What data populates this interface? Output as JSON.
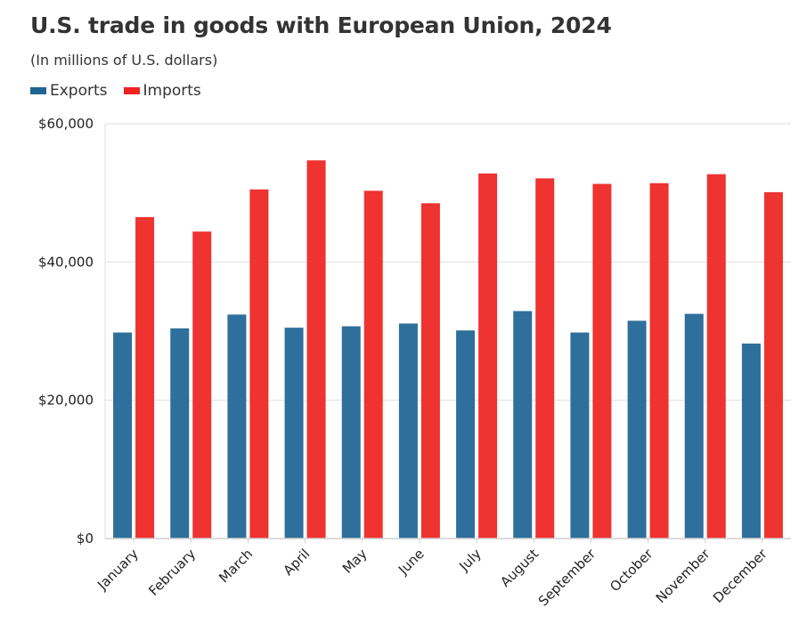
{
  "title": "U.S. trade in goods with European Union, 2024",
  "subtitle": "(In millions of U.S. dollars)",
  "legend": {
    "exports_label": "Exports",
    "imports_label": "Imports"
  },
  "colors": {
    "exports": "#2e6f9b",
    "imports": "#ee3330",
    "legend_exports": "#1f6593",
    "legend_imports": "#ee2322",
    "grid": "#e8e8e8"
  },
  "chart_data": {
    "type": "bar",
    "title": "U.S. trade in goods with European Union, 2024",
    "subtitle": "(In millions of U.S. dollars)",
    "categories": [
      "January",
      "February",
      "March",
      "April",
      "May",
      "June",
      "July",
      "August",
      "September",
      "October",
      "November",
      "December"
    ],
    "series": [
      {
        "name": "Exports",
        "values": [
          29800,
          30400,
          32400,
          30500,
          30700,
          31100,
          30100,
          32900,
          29800,
          31500,
          32500,
          28200
        ]
      },
      {
        "name": "Imports",
        "values": [
          46500,
          44400,
          50500,
          54700,
          50300,
          48500,
          52800,
          52100,
          51300,
          51400,
          52700,
          50100
        ]
      }
    ],
    "ylim": [
      0,
      60000
    ],
    "yticks": [
      0,
      20000,
      40000,
      60000
    ],
    "ytick_labels": [
      "$0",
      "$20,000",
      "$40,000",
      "$60,000"
    ],
    "xlabel": "",
    "ylabel": "",
    "grid": true,
    "legend_position": "top-left"
  }
}
